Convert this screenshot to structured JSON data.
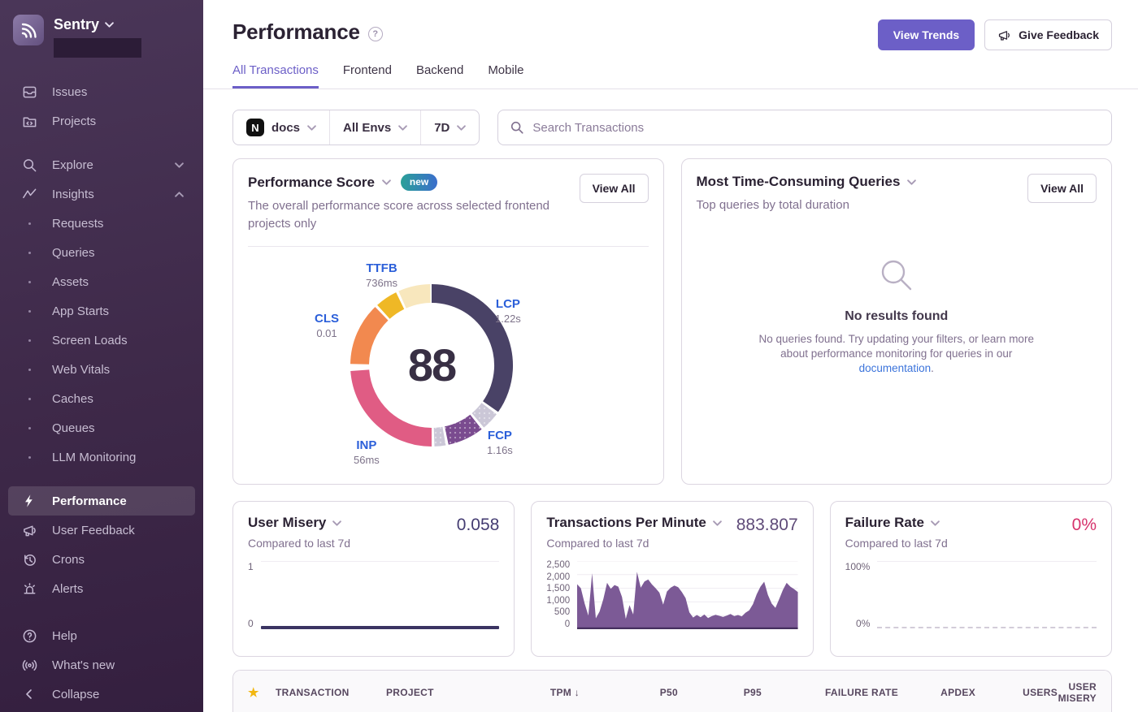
{
  "colors": {
    "accent": "#6c5fc7",
    "link": "#3c74db",
    "vital_label_blue": "#2b5fd9",
    "tpm_fill": "#7c5a96",
    "misery_line": "#3b3462",
    "failure_value": "#d6336c",
    "star": "#f2b712",
    "badge_gradient_start": "#2aa098",
    "badge_gradient_end": "#3b6ecc"
  },
  "sidebar": {
    "org_name": "Sentry",
    "issues": "Issues",
    "projects": "Projects",
    "explore": "Explore",
    "insights": "Insights",
    "insights_children": [
      "Requests",
      "Queries",
      "Assets",
      "App Starts",
      "Screen Loads",
      "Web Vitals",
      "Caches",
      "Queues",
      "LLM Monitoring"
    ],
    "performance": "Performance",
    "user_feedback": "User Feedback",
    "crons": "Crons",
    "alerts": "Alerts",
    "help": "Help",
    "whats_new": "What's new",
    "collapse": "Collapse"
  },
  "header": {
    "title": "Performance",
    "view_trends": "View Trends",
    "give_feedback": "Give Feedback"
  },
  "tabs": {
    "items": [
      "All Transactions",
      "Frontend",
      "Backend",
      "Mobile"
    ],
    "active": "All Transactions"
  },
  "filters": {
    "project": "docs",
    "env": "All Envs",
    "period": "7D",
    "search_placeholder": "Search Transactions"
  },
  "performance_score": {
    "title": "Performance Score",
    "badge": "new",
    "view_all": "View All",
    "description": "The overall performance score across selected frontend projects only",
    "score": "88",
    "donut": {
      "segments": [
        {
          "label": "LCP",
          "color": "#494266",
          "start": 0,
          "end": 125,
          "dotted": false
        },
        {
          "label": "spacer",
          "color": "#cbc7d7",
          "start": 127,
          "end": 140,
          "dotted": true
        },
        {
          "label": "FCP",
          "color": "#7a4b8f",
          "start": 142,
          "end": 168,
          "dotted": true
        },
        {
          "label": "spacer",
          "color": "#cbc7d7",
          "start": 170,
          "end": 178,
          "dotted": true
        },
        {
          "label": "INP",
          "color": "#e05c84",
          "start": 180,
          "end": 266,
          "dotted": false
        },
        {
          "label": "CLS",
          "color": "#f2894f",
          "start": 271,
          "end": 316,
          "dotted": false
        },
        {
          "label": "TTFB",
          "color": "#efb826",
          "start": 318,
          "end": 334,
          "dotted": false
        },
        {
          "label": "TTFB-remainder",
          "color": "#f8e7bd",
          "start": 336,
          "end": 359,
          "dotted": false
        }
      ],
      "labels": [
        {
          "name": "TTFB",
          "value": "736ms"
        },
        {
          "name": "LCP",
          "value": "1.22s"
        },
        {
          "name": "CLS",
          "value": "0.01"
        },
        {
          "name": "INP",
          "value": "56ms"
        },
        {
          "name": "FCP",
          "value": "1.16s"
        }
      ]
    }
  },
  "queries_card": {
    "title": "Most Time-Consuming Queries",
    "subtitle": "Top queries by total duration",
    "view_all": "View All",
    "empty_title": "No results found",
    "empty_body_1": "No queries found. Try updating your filters, or learn more about performance monitoring for queries in our ",
    "empty_link": "documentation",
    "empty_body_2": "."
  },
  "user_misery": {
    "title": "User Misery",
    "subtitle": "Compared to last 7d",
    "value": "0.058",
    "y_max": "1",
    "y_min": "0"
  },
  "tpm": {
    "title": "Transactions Per Minute",
    "subtitle": "Compared to last 7d",
    "value": "883.807",
    "y_ticks": [
      "2,500",
      "2,000",
      "1,500",
      "1,000",
      "500",
      "0"
    ],
    "y_max": 2500,
    "series": [
      1650,
      1500,
      950,
      500,
      2050,
      400,
      650,
      1100,
      1700,
      1480,
      1620,
      1560,
      1180,
      380,
      880,
      540,
      2100,
      1520,
      1750,
      1820,
      1640,
      1500,
      1340,
      900,
      1380,
      1520,
      1600,
      1540,
      1360,
      1140,
      620,
      430,
      520,
      440,
      540,
      410,
      480,
      530,
      490,
      450,
      500,
      560,
      480,
      520,
      470,
      600,
      690,
      920,
      1280,
      1560,
      1740,
      1260,
      940,
      780,
      1100,
      1440,
      1700,
      1560,
      1470,
      1360
    ]
  },
  "failure_rate": {
    "title": "Failure Rate",
    "subtitle": "Compared to last 7d",
    "value": "0%",
    "y_max": "100%",
    "y_min": "0%"
  },
  "table": {
    "columns": [
      "TRANSACTION",
      "PROJECT",
      "TPM",
      "P50",
      "P95",
      "FAILURE RATE",
      "APDEX",
      "USERS",
      "USER MISERY"
    ],
    "sort_column": "TPM",
    "sort_dir": "desc",
    "sort_glyph": "↓"
  }
}
